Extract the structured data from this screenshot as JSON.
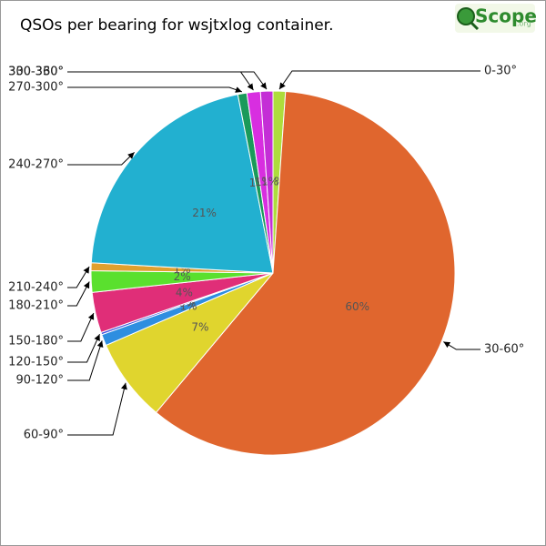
{
  "chart_data": {
    "type": "pie",
    "title": "QSOs per bearing for wsjtxlog container.",
    "logo": {
      "name": "Scope",
      "suffix": ".org"
    },
    "categories": [
      "0-30°",
      "30-60°",
      "60-90°",
      "90-120°",
      "120-150°",
      "150-180°",
      "180-210°",
      "210-240°",
      "240-270°",
      "270-300°",
      "300-330°",
      "330-360°"
    ],
    "values": [
      1.1,
      60,
      7.4,
      1,
      0.2,
      3.6,
      1.9,
      0.7,
      21,
      0.8,
      1.2,
      1.1
    ],
    "value_labels": [
      "1%",
      "60%",
      "7%",
      "1%",
      "0%",
      "4%",
      "2%",
      "1%",
      "21%",
      "1%",
      "1%",
      "1%"
    ],
    "colors": [
      "#aedc3c",
      "#e0662e",
      "#e0d52e",
      "#2e8ee0",
      "#3b4fe0",
      "#e02e78",
      "#5ae02e",
      "#e0a02e",
      "#22b0d0",
      "#1a9a5a",
      "#d82ee0",
      "#c42ed6"
    ]
  }
}
